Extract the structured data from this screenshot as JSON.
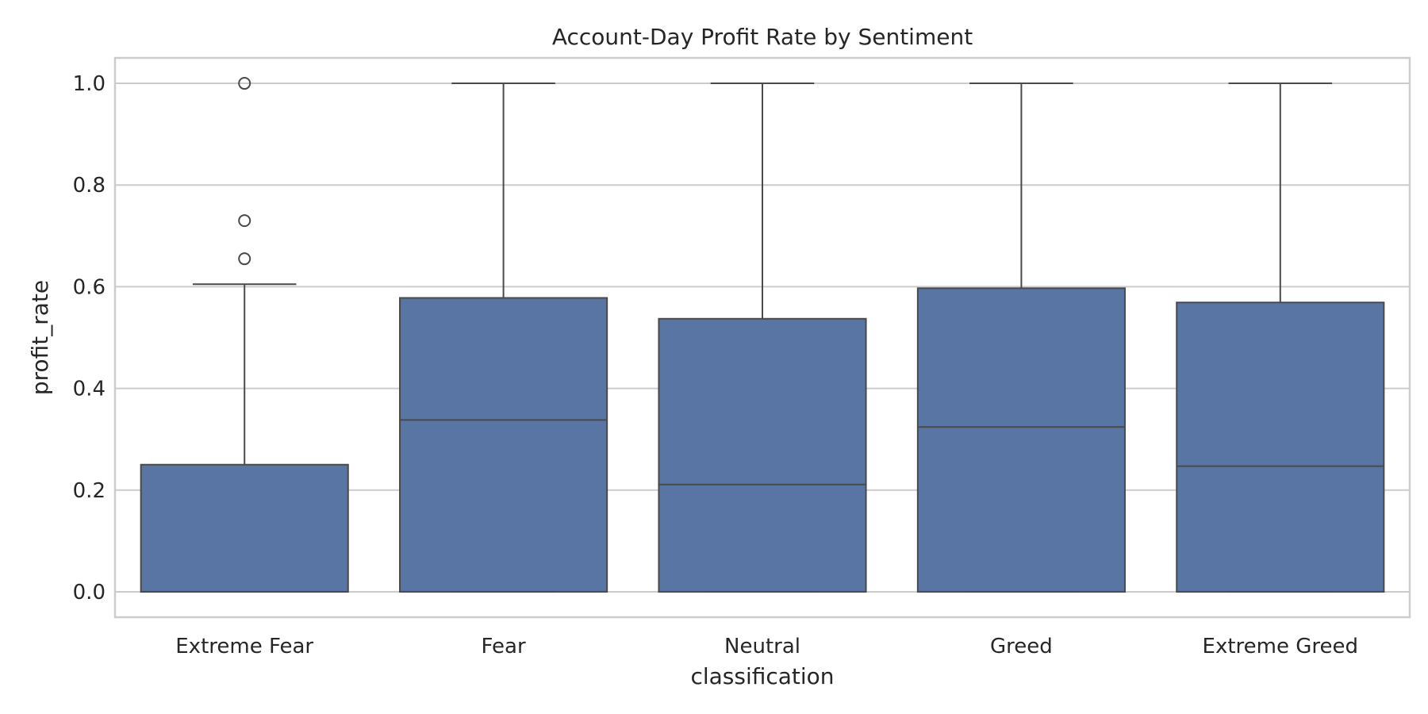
{
  "chart_data": {
    "type": "box",
    "title": "Account-Day Profit Rate by Sentiment",
    "xlabel": "classification",
    "ylabel": "profit_rate",
    "ylim": [
      -0.05,
      1.05
    ],
    "yticks": [
      "0.0",
      "0.2",
      "0.4",
      "0.6",
      "0.8",
      "1.0"
    ],
    "grid": "horizontal",
    "box_color": "#5875a4",
    "line_color": "#4a4a4a",
    "categories": [
      "Extreme Fear",
      "Fear",
      "Neutral",
      "Greed",
      "Extreme Greed"
    ],
    "boxes": [
      {
        "category": "Extreme Fear",
        "whislo": 0.0,
        "q1": 0.0,
        "median": 0.0,
        "q3": 0.25,
        "whishi": 0.605,
        "fliers": [
          0.655,
          0.73,
          1.0
        ]
      },
      {
        "category": "Fear",
        "whislo": 0.0,
        "q1": 0.0,
        "median": 0.338,
        "q3": 0.578,
        "whishi": 1.0,
        "fliers": []
      },
      {
        "category": "Neutral",
        "whislo": 0.0,
        "q1": 0.0,
        "median": 0.211,
        "q3": 0.537,
        "whishi": 1.0,
        "fliers": []
      },
      {
        "category": "Greed",
        "whislo": 0.0,
        "q1": 0.0,
        "median": 0.324,
        "q3": 0.597,
        "whishi": 1.0,
        "fliers": []
      },
      {
        "category": "Extreme Greed",
        "whislo": 0.0,
        "q1": 0.0,
        "median": 0.247,
        "q3": 0.569,
        "whishi": 1.0,
        "fliers": []
      }
    ]
  }
}
